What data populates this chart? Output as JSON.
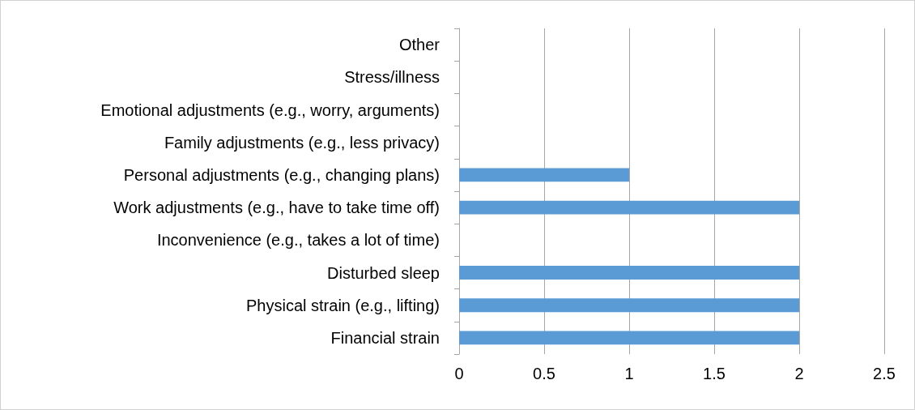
{
  "chart_data": {
    "type": "bar",
    "orientation": "horizontal",
    "categories": [
      "Other",
      "Stress/illness",
      "Emotional adjustments (e.g., worry, arguments)",
      "Family adjustments (e.g., less privacy)",
      "Personal adjustments (e.g., changing plans)",
      "Work adjustments (e.g., have to take time off)",
      "Inconvenience (e.g., takes a lot of time)",
      "Disturbed sleep",
      "Physical strain (e.g., lifting)",
      "Financial strain"
    ],
    "values": [
      0,
      0,
      0,
      0,
      1,
      2,
      0,
      2,
      2,
      2
    ],
    "color": "#5b9bd5",
    "xlim": [
      0,
      2.5
    ],
    "xticks": [
      0,
      0.5,
      1,
      1.5,
      2,
      2.5
    ],
    "grid": "x"
  }
}
